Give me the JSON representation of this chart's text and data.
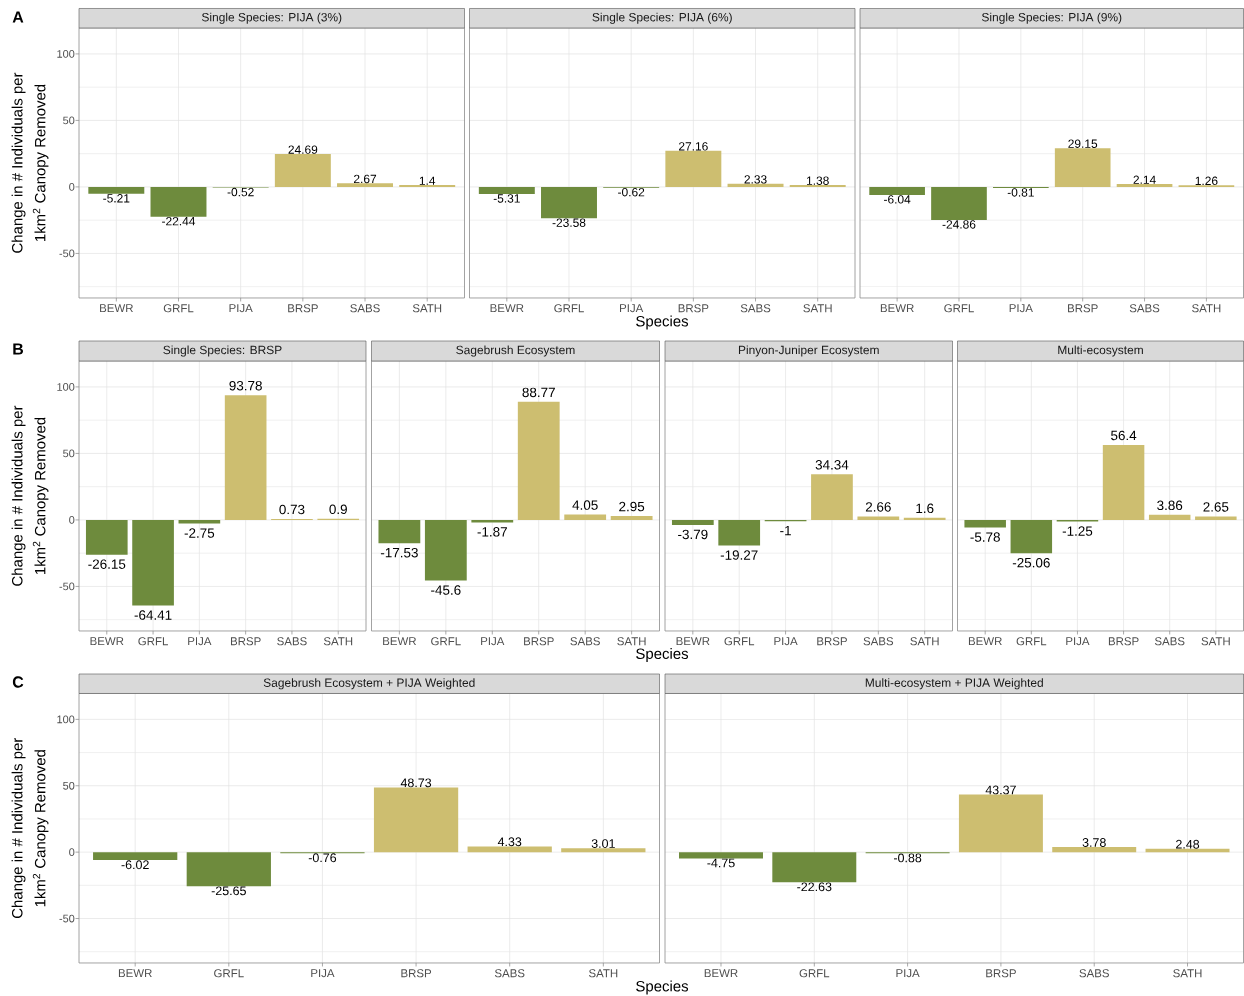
{
  "chart_data": [
    {
      "type": "bar",
      "title": "Single Species: PIJA (3%)",
      "categories": [
        "BEWR",
        "GRFL",
        "PIJA",
        "BRSP",
        "SABS",
        "SATH"
      ],
      "values": [
        -5.21,
        -22.44,
        -0.52,
        24.69,
        2.67,
        1.4
      ],
      "colors": [
        "#6e8b3d",
        "#6e8b3d",
        "#6e8b3d",
        "#cdbe70",
        "#cdbe70",
        "#cdbe70"
      ],
      "ylim": [
        -83.5,
        119.5
      ],
      "yticks": [
        {
          "value": -75,
          "label": null
        },
        -50,
        {
          "value": -25,
          "label": null
        },
        0,
        {
          "value": 25,
          "label": null
        },
        50,
        {
          "value": 75,
          "label": null
        },
        100
      ],
      "grid": true,
      "data_labels": true,
      "ylabel": "Change in # Individuals per 1km$^{2}$ Canopy Removed",
      "annotations": [
        "A"
      ]
    },
    {
      "type": "bar",
      "title": "Single Species: PIJA (6%)",
      "categories": [
        "BEWR",
        "GRFL",
        "PIJA",
        "BRSP",
        "SABS",
        "SATH"
      ],
      "values": [
        -5.31,
        -23.58,
        -0.62,
        27.16,
        2.33,
        1.38
      ],
      "colors": [
        "#6e8b3d",
        "#6e8b3d",
        "#6e8b3d",
        "#cdbe70",
        "#cdbe70",
        "#cdbe70"
      ],
      "ylim": [
        -83.5,
        119.5
      ],
      "yticks": [
        {
          "value": -75,
          "label": null
        },
        -50,
        {
          "value": -25,
          "label": null
        },
        0,
        {
          "value": 25,
          "label": null
        },
        50,
        {
          "value": 75,
          "label": null
        },
        100
      ],
      "grid": true,
      "data_labels": true,
      "tick_labels": "x",
      "xlabel": "Species"
    },
    {
      "type": "bar",
      "title": "Single Species: PIJA (9%)",
      "categories": [
        "BEWR",
        "GRFL",
        "PIJA",
        "BRSP",
        "SABS",
        "SATH"
      ],
      "values": [
        -6.04,
        -24.86,
        -0.81,
        29.15,
        2.14,
        1.26
      ],
      "colors": [
        "#6e8b3d",
        "#6e8b3d",
        "#6e8b3d",
        "#cdbe70",
        "#cdbe70",
        "#cdbe70"
      ],
      "ylim": [
        -83.5,
        119.5
      ],
      "yticks": [
        {
          "value": -75,
          "label": null
        },
        -50,
        {
          "value": -25,
          "label": null
        },
        0,
        {
          "value": 25,
          "label": null
        },
        50,
        {
          "value": 75,
          "label": null
        },
        100
      ],
      "grid": true,
      "data_labels": true,
      "tick_labels": "x"
    },
    {
      "type": "bar",
      "title": "Single Species: BRSP",
      "categories": [
        "BEWR",
        "GRFL",
        "PIJA",
        "BRSP",
        "SABS",
        "SATH"
      ],
      "values": [
        -26.15,
        -64.41,
        -2.75,
        93.78,
        0.73,
        0.9
      ],
      "colors": [
        "#6e8b3d",
        "#6e8b3d",
        "#6e8b3d",
        "#cdbe70",
        "#cdbe70",
        "#cdbe70"
      ],
      "ylim": [
        -83.5,
        119.5
      ],
      "yticks": [
        {
          "value": -75,
          "label": null
        },
        -50,
        {
          "value": -25,
          "label": null
        },
        0,
        {
          "value": 25,
          "label": null
        },
        50,
        {
          "value": 75,
          "label": null
        },
        100
      ],
      "grid": true,
      "data_labels": true,
      "ylabel": "Change in # Individuals per 1km$^{2}$ Canopy Removed",
      "annotations": [
        "B"
      ]
    },
    {
      "type": "bar",
      "title": "Sagebrush Ecosystem",
      "categories": [
        "BEWR",
        "GRFL",
        "PIJA",
        "BRSP",
        "SABS",
        "SATH"
      ],
      "values": [
        -17.53,
        -45.6,
        -1.87,
        88.77,
        4.05,
        2.95
      ],
      "colors": [
        "#6e8b3d",
        "#6e8b3d",
        "#6e8b3d",
        "#cdbe70",
        "#cdbe70",
        "#cdbe70"
      ],
      "ylim": [
        -83.5,
        119.5
      ],
      "yticks": [
        {
          "value": -75,
          "label": null
        },
        -50,
        {
          "value": -25,
          "label": null
        },
        0,
        {
          "value": 25,
          "label": null
        },
        50,
        {
          "value": 75,
          "label": null
        },
        100
      ],
      "grid": true,
      "data_labels": true,
      "tick_labels": "x",
      "xlabel": "Species"
    },
    {
      "type": "bar",
      "title": "Pinyon-Juniper Ecosystem",
      "categories": [
        "BEWR",
        "GRFL",
        "PIJA",
        "BRSP",
        "SABS",
        "SATH"
      ],
      "values": [
        -3.79,
        -19.27,
        -1,
        34.34,
        2.66,
        1.6
      ],
      "colors": [
        "#6e8b3d",
        "#6e8b3d",
        "#6e8b3d",
        "#cdbe70",
        "#cdbe70",
        "#cdbe70"
      ],
      "ylim": [
        -83.5,
        119.5
      ],
      "yticks": [
        {
          "value": -75,
          "label": null
        },
        -50,
        {
          "value": -25,
          "label": null
        },
        0,
        {
          "value": 25,
          "label": null
        },
        50,
        {
          "value": 75,
          "label": null
        },
        100
      ],
      "grid": true,
      "data_labels": true,
      "tick_labels": "x"
    },
    {
      "type": "bar",
      "title": "Multi-ecosystem",
      "categories": [
        "BEWR",
        "GRFL",
        "PIJA",
        "BRSP",
        "SABS",
        "SATH"
      ],
      "values": [
        -5.78,
        -25.06,
        -1.25,
        56.4,
        3.86,
        2.65
      ],
      "colors": [
        "#6e8b3d",
        "#6e8b3d",
        "#6e8b3d",
        "#cdbe70",
        "#cdbe70",
        "#cdbe70"
      ],
      "ylim": [
        -83.5,
        119.5
      ],
      "yticks": [
        {
          "value": -75,
          "label": null
        },
        -50,
        {
          "value": -25,
          "label": null
        },
        0,
        {
          "value": 25,
          "label": null
        },
        50,
        {
          "value": 75,
          "label": null
        },
        100
      ],
      "grid": true,
      "data_labels": true,
      "tick_labels": "x"
    },
    {
      "type": "bar",
      "title": "Sagebrush Ecosystem + PIJA Weighted",
      "categories": [
        "BEWR",
        "GRFL",
        "PIJA",
        "BRSP",
        "SABS",
        "SATH"
      ],
      "values": [
        -6.02,
        -25.65,
        -0.76,
        48.73,
        4.33,
        3.01
      ],
      "colors": [
        "#6e8b3d",
        "#6e8b3d",
        "#6e8b3d",
        "#cdbe70",
        "#cdbe70",
        "#cdbe70"
      ],
      "ylim": [
        -83.5,
        119.5
      ],
      "yticks": [
        {
          "value": -75,
          "label": null
        },
        -50,
        {
          "value": -25,
          "label": null
        },
        0,
        {
          "value": 25,
          "label": null
        },
        50,
        {
          "value": 75,
          "label": null
        },
        100
      ],
      "grid": true,
      "data_labels": true,
      "ylabel": "Change in # Individuals per 1km$^{2}$ Canopy Removed",
      "annotations": [
        "C"
      ],
      "xlabel": "Species"
    },
    {
      "type": "bar",
      "title": "Multi-ecosystem + PIJA Weighted",
      "categories": [
        "BEWR",
        "GRFL",
        "PIJA",
        "BRSP",
        "SABS",
        "SATH"
      ],
      "values": [
        -4.75,
        -22.63,
        -0.88,
        43.37,
        3.78,
        2.48
      ],
      "colors": [
        "#6e8b3d",
        "#6e8b3d",
        "#6e8b3d",
        "#cdbe70",
        "#cdbe70",
        "#cdbe70"
      ],
      "ylim": [
        -83.5,
        119.5
      ],
      "yticks": [
        {
          "value": -75,
          "label": null
        },
        -50,
        {
          "value": -25,
          "label": null
        },
        0,
        {
          "value": 25,
          "label": null
        },
        50,
        {
          "value": 75,
          "label": null
        },
        100
      ],
      "grid": true,
      "data_labels": true,
      "tick_labels": "x"
    }
  ]
}
